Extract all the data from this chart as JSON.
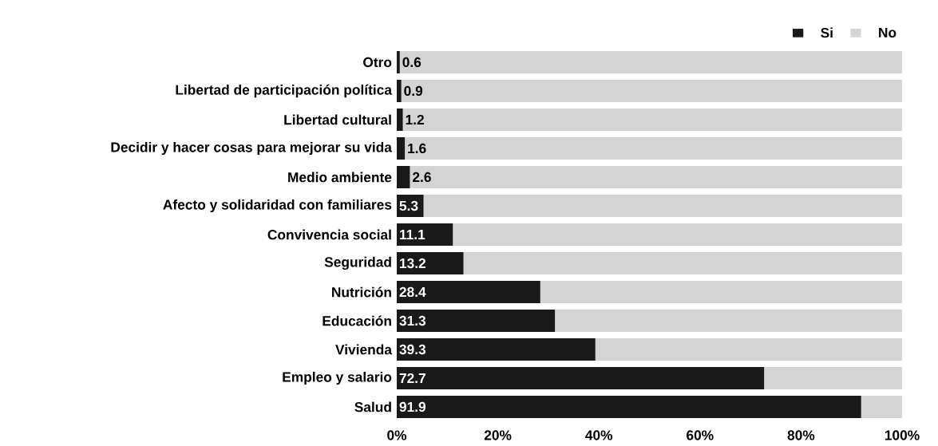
{
  "chart_data": {
    "type": "bar",
    "orientation": "horizontal",
    "stacked": true,
    "categories": [
      "Otro",
      "Libertad de participación política",
      "Libertad cultural",
      "Decidir y hacer cosas para mejorar su vida",
      "Medio ambiente",
      "Afecto y solidaridad con familiares",
      "Convivencia social",
      "Seguridad",
      "Nutrición",
      "Educación",
      "Vivienda",
      "Empleo y salario",
      "Salud"
    ],
    "series": [
      {
        "name": "Si",
        "color": "#1a1a1a",
        "values": [
          0.6,
          0.9,
          1.2,
          1.6,
          2.6,
          5.3,
          11.1,
          13.2,
          28.4,
          31.3,
          39.3,
          72.7,
          91.9
        ],
        "value_labels": [
          "0.6",
          "0.9",
          "1.2",
          "1.6",
          "2.6",
          "5.3",
          "11.1",
          "13.2",
          "28.4",
          "31.3",
          "39.3",
          "72.7",
          "91.9"
        ]
      },
      {
        "name": "No",
        "color": "#d4d4d4",
        "values": [
          99.4,
          99.1,
          98.8,
          98.4,
          97.4,
          94.7,
          88.9,
          86.8,
          71.6,
          68.7,
          60.7,
          27.3,
          8.1
        ]
      }
    ],
    "xlim": [
      0,
      100
    ],
    "xticks": [
      {
        "value": 0,
        "label": "0%"
      },
      {
        "value": 20,
        "label": "20%"
      },
      {
        "value": 40,
        "label": "40%"
      },
      {
        "value": 60,
        "label": "60%"
      },
      {
        "value": 80,
        "label": "80%"
      },
      {
        "value": 100,
        "label": "100%"
      }
    ],
    "legend": "top right",
    "grid": false
  }
}
